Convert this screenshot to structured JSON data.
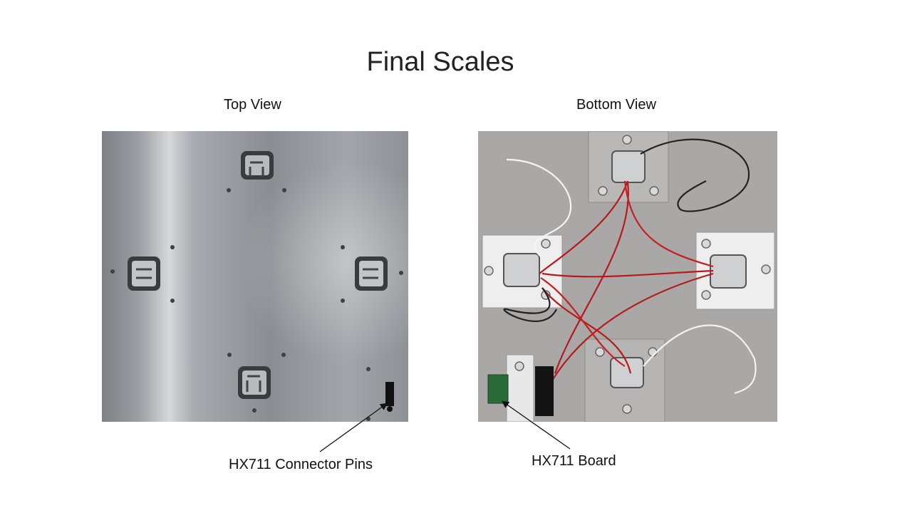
{
  "slide": {
    "title": "Final Scales",
    "top_view_label": "Top View",
    "bottom_view_label": "Bottom View",
    "hx711_pins_label": "HX711 Connector Pins",
    "hx711_board_label": "HX711 Board"
  }
}
